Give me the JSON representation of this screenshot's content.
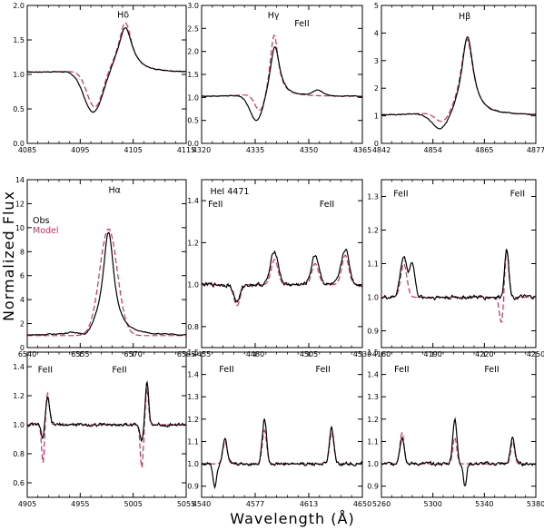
{
  "figure": {
    "xlabel": "Wavelength (Å)",
    "ylabel": "Normalized Flux",
    "legend": {
      "obs": "Obs",
      "model": "Model",
      "obs_color": "#000000",
      "model_color": "#cc3366"
    }
  },
  "chart_data": [
    {
      "type": "line",
      "xlim": [
        4085,
        4115
      ],
      "ylim": [
        0.0,
        2.0
      ],
      "xticks": [
        "4085",
        "4095",
        "4105",
        "4115"
      ],
      "yticks": [
        "0.0",
        "0.5",
        "1.0",
        "1.5",
        "2.0"
      ],
      "annotations": [
        {
          "text": "Hδ",
          "x": 4102,
          "y": 1.82
        }
      ],
      "lines": [
        {
          "center": 4103.5,
          "amp": 0.65,
          "width": 1.6,
          "shape": "lorentz"
        },
        {
          "center": 4097.5,
          "amp": -0.62,
          "width": 1.8,
          "shape": "gauss"
        }
      ],
      "baseline": 1.03,
      "model_lines": [
        {
          "center": 4103.5,
          "amp": 0.72,
          "width": 1.5,
          "shape": "lorentz"
        },
        {
          "center": 4097.8,
          "amp": -0.55,
          "width": 1.5,
          "shape": "gauss"
        }
      ]
    },
    {
      "type": "line",
      "xlim": [
        4320,
        4365
      ],
      "ylim": [
        0.0,
        3.0
      ],
      "xticks": [
        "4320",
        "4335",
        "4350",
        "4365"
      ],
      "yticks": [
        "0.0",
        "0.5",
        "1.0",
        "1.5",
        "2.0",
        "2.5",
        "3.0"
      ],
      "annotations": [
        {
          "text": "Hγ",
          "x": 4338.5,
          "y": 2.72
        },
        {
          "text": "FeII",
          "x": 4346,
          "y": 2.55
        }
      ],
      "lines": [
        {
          "center": 4340.5,
          "amp": 1.1,
          "width": 1.6,
          "shape": "lorentz"
        },
        {
          "center": 4335.5,
          "amp": -0.62,
          "width": 1.9,
          "shape": "gauss"
        },
        {
          "center": 4352.5,
          "amp": 0.12,
          "width": 1.5,
          "shape": "gauss"
        }
      ],
      "baseline": 1.02,
      "model_lines": [
        {
          "center": 4340.3,
          "amp": 1.35,
          "width": 1.4,
          "shape": "lorentz"
        },
        {
          "center": 4336.5,
          "amp": -0.45,
          "width": 1.5,
          "shape": "gauss"
        }
      ]
    },
    {
      "type": "line",
      "xlim": [
        4842,
        4877
      ],
      "ylim": [
        0,
        5
      ],
      "xticks": [
        "4842",
        "4854",
        "4865",
        "4877"
      ],
      "yticks": [
        "0",
        "1",
        "2",
        "3",
        "4",
        "5"
      ],
      "annotations": [
        {
          "text": "Hβ",
          "x": 4859.5,
          "y": 4.5
        }
      ],
      "lines": [
        {
          "center": 4861.5,
          "amp": 2.85,
          "width": 1.6,
          "shape": "lorentz"
        },
        {
          "center": 4855.5,
          "amp": -0.65,
          "width": 2.0,
          "shape": "gauss"
        }
      ],
      "baseline": 1.02,
      "model_lines": [
        {
          "center": 4861.4,
          "amp": 2.75,
          "width": 1.7,
          "shape": "lorentz"
        },
        {
          "center": 4856.0,
          "amp": -0.45,
          "width": 1.7,
          "shape": "gauss"
        }
      ]
    },
    {
      "type": "line",
      "xlim": [
        6540,
        6585
      ],
      "ylim": [
        0,
        14
      ],
      "xticks": [
        "6540",
        "6555",
        "6570",
        "6585"
      ],
      "yticks": [
        "0",
        "2",
        "4",
        "6",
        "8",
        "10",
        "12",
        "14"
      ],
      "annotations": [
        {
          "text": "Hα",
          "x": 6563,
          "y": 12.9
        }
      ],
      "legend_pos": "top-left",
      "lines": [
        {
          "center": 6563.0,
          "amp": 8.6,
          "width": 1.9,
          "shape": "lorentz"
        },
        {
          "center": 6556.5,
          "amp": -0.5,
          "width": 1.4,
          "shape": "gauss"
        }
      ],
      "baseline": 1.0,
      "model_lines": [
        {
          "center": 6563.0,
          "amp": 8.9,
          "width": 2.5,
          "shape": "gauss"
        }
      ]
    },
    {
      "type": "line",
      "xlim": [
        4455,
        4530
      ],
      "ylim": [
        0.7,
        1.5
      ],
      "xticks": [
        "4455",
        "4480",
        "4505",
        "4530"
      ],
      "yticks": [
        "0.8",
        "1.0",
        "1.2",
        "1.4"
      ],
      "annotations": [
        {
          "text": "HeI  4471",
          "x": 4459,
          "y": 1.43
        },
        {
          "text": "FeII",
          "x": 4458,
          "y": 1.37
        },
        {
          "text": "FeII",
          "x": 4510,
          "y": 1.37
        }
      ],
      "lines": [
        {
          "center": 4489,
          "amp": 0.16,
          "width": 1.8,
          "shape": "gauss"
        },
        {
          "center": 4508,
          "amp": 0.14,
          "width": 1.8,
          "shape": "gauss"
        },
        {
          "center": 4522,
          "amp": 0.17,
          "width": 1.8,
          "shape": "gauss"
        },
        {
          "center": 4471.5,
          "amp": -0.08,
          "width": 1.5,
          "shape": "gauss"
        }
      ],
      "baseline": 1.0,
      "model_lines": [
        {
          "center": 4489,
          "amp": 0.12,
          "width": 1.6,
          "shape": "gauss"
        },
        {
          "center": 4508,
          "amp": 0.1,
          "width": 1.6,
          "shape": "gauss"
        },
        {
          "center": 4522,
          "amp": 0.14,
          "width": 1.6,
          "shape": "gauss"
        },
        {
          "center": 4471.5,
          "amp": -0.1,
          "width": 1.5,
          "shape": "gauss"
        }
      ]
    },
    {
      "type": "line",
      "xlim": [
        4160,
        4250
      ],
      "ylim": [
        0.85,
        1.35
      ],
      "xticks": [
        "4160",
        "4190",
        "4220",
        "4250"
      ],
      "yticks": [
        "0.9",
        "1.0",
        "1.1",
        "1.2",
        "1.3"
      ],
      "annotations": [
        {
          "text": "FeII",
          "x": 4167,
          "y": 1.3
        },
        {
          "text": "FeII",
          "x": 4235,
          "y": 1.3
        }
      ],
      "lines": [
        {
          "center": 4173,
          "amp": 0.12,
          "width": 2.0,
          "shape": "gauss"
        },
        {
          "center": 4178,
          "amp": 0.1,
          "width": 1.5,
          "shape": "gauss"
        },
        {
          "center": 4233,
          "amp": 0.15,
          "width": 1.2,
          "shape": "gauss"
        }
      ],
      "baseline": 1.0,
      "model_lines": [
        {
          "center": 4173,
          "amp": 0.1,
          "width": 1.8,
          "shape": "gauss"
        },
        {
          "center": 4233,
          "amp": 0.14,
          "width": 1.2,
          "shape": "gauss"
        },
        {
          "center": 4230,
          "amp": -0.08,
          "width": 1.2,
          "shape": "gauss"
        }
      ]
    },
    {
      "type": "line",
      "xlim": [
        4905,
        5055
      ],
      "ylim": [
        0.5,
        1.5
      ],
      "xticks": [
        "4905",
        "4955",
        "5005",
        "5055"
      ],
      "yticks": [
        "0.6",
        "0.8",
        "1.0",
        "1.2",
        "1.4"
      ],
      "annotations": [
        {
          "text": "FeII",
          "x": 4915,
          "y": 1.36
        },
        {
          "text": "FeII",
          "x": 4985,
          "y": 1.36
        }
      ],
      "lines": [
        {
          "center": 4924,
          "amp": 0.18,
          "width": 2.0,
          "shape": "gauss"
        },
        {
          "center": 4920,
          "amp": -0.12,
          "width": 1.5,
          "shape": "gauss"
        },
        {
          "center": 5018,
          "amp": 0.3,
          "width": 1.5,
          "shape": "gauss"
        },
        {
          "center": 5013,
          "amp": -0.1,
          "width": 1.5,
          "shape": "gauss"
        }
      ],
      "baseline": 1.0,
      "model_lines": [
        {
          "center": 4924,
          "amp": 0.22,
          "width": 1.8,
          "shape": "gauss"
        },
        {
          "center": 4920,
          "amp": -0.28,
          "width": 1.4,
          "shape": "gauss"
        },
        {
          "center": 5018,
          "amp": 0.25,
          "width": 1.4,
          "shape": "gauss"
        },
        {
          "center": 5013,
          "amp": -0.3,
          "width": 1.4,
          "shape": "gauss"
        }
      ]
    },
    {
      "type": "line",
      "xlim": [
        4540,
        4650
      ],
      "ylim": [
        0.85,
        1.5
      ],
      "xticks": [
        "4540",
        "4577",
        "4613",
        "4650"
      ],
      "yticks": [
        "0.9",
        "1.0",
        "1.1",
        "1.2",
        "1.3",
        "1.4",
        "1.5"
      ],
      "annotations": [
        {
          "text": "FeII",
          "x": 4552,
          "y": 1.41
        },
        {
          "text": "FeII",
          "x": 4618,
          "y": 1.41
        }
      ],
      "lines": [
        {
          "center": 4556,
          "amp": 0.12,
          "width": 1.5,
          "shape": "gauss"
        },
        {
          "center": 4583,
          "amp": 0.2,
          "width": 1.5,
          "shape": "gauss"
        },
        {
          "center": 4629,
          "amp": 0.16,
          "width": 1.5,
          "shape": "gauss"
        },
        {
          "center": 4549,
          "amp": -0.1,
          "width": 1.2,
          "shape": "gauss"
        }
      ],
      "baseline": 1.0,
      "model_lines": [
        {
          "center": 4556,
          "amp": 0.1,
          "width": 1.5,
          "shape": "gauss"
        },
        {
          "center": 4583,
          "amp": 0.15,
          "width": 1.5,
          "shape": "gauss"
        },
        {
          "center": 4629,
          "amp": 0.14,
          "width": 1.5,
          "shape": "gauss"
        }
      ]
    },
    {
      "type": "line",
      "xlim": [
        5260,
        5380
      ],
      "ylim": [
        0.85,
        1.5
      ],
      "xticks": [
        "5260",
        "5300",
        "5340",
        "5380"
      ],
      "yticks": [
        "0.9",
        "1.0",
        "1.1",
        "1.2",
        "1.3",
        "1.4",
        "1.5"
      ],
      "annotations": [
        {
          "text": "FeII",
          "x": 5270,
          "y": 1.41
        },
        {
          "text": "FeII",
          "x": 5340,
          "y": 1.41
        }
      ],
      "lines": [
        {
          "center": 5276,
          "amp": 0.12,
          "width": 1.8,
          "shape": "gauss"
        },
        {
          "center": 5317,
          "amp": 0.2,
          "width": 1.6,
          "shape": "gauss"
        },
        {
          "center": 5362,
          "amp": 0.12,
          "width": 1.6,
          "shape": "gauss"
        },
        {
          "center": 5325,
          "amp": -0.1,
          "width": 1.2,
          "shape": "gauss"
        }
      ],
      "baseline": 1.0,
      "model_lines": [
        {
          "center": 5276,
          "amp": 0.14,
          "width": 1.6,
          "shape": "gauss"
        },
        {
          "center": 5317,
          "amp": 0.12,
          "width": 1.5,
          "shape": "gauss"
        },
        {
          "center": 5362,
          "amp": 0.1,
          "width": 1.5,
          "shape": "gauss"
        }
      ]
    }
  ]
}
